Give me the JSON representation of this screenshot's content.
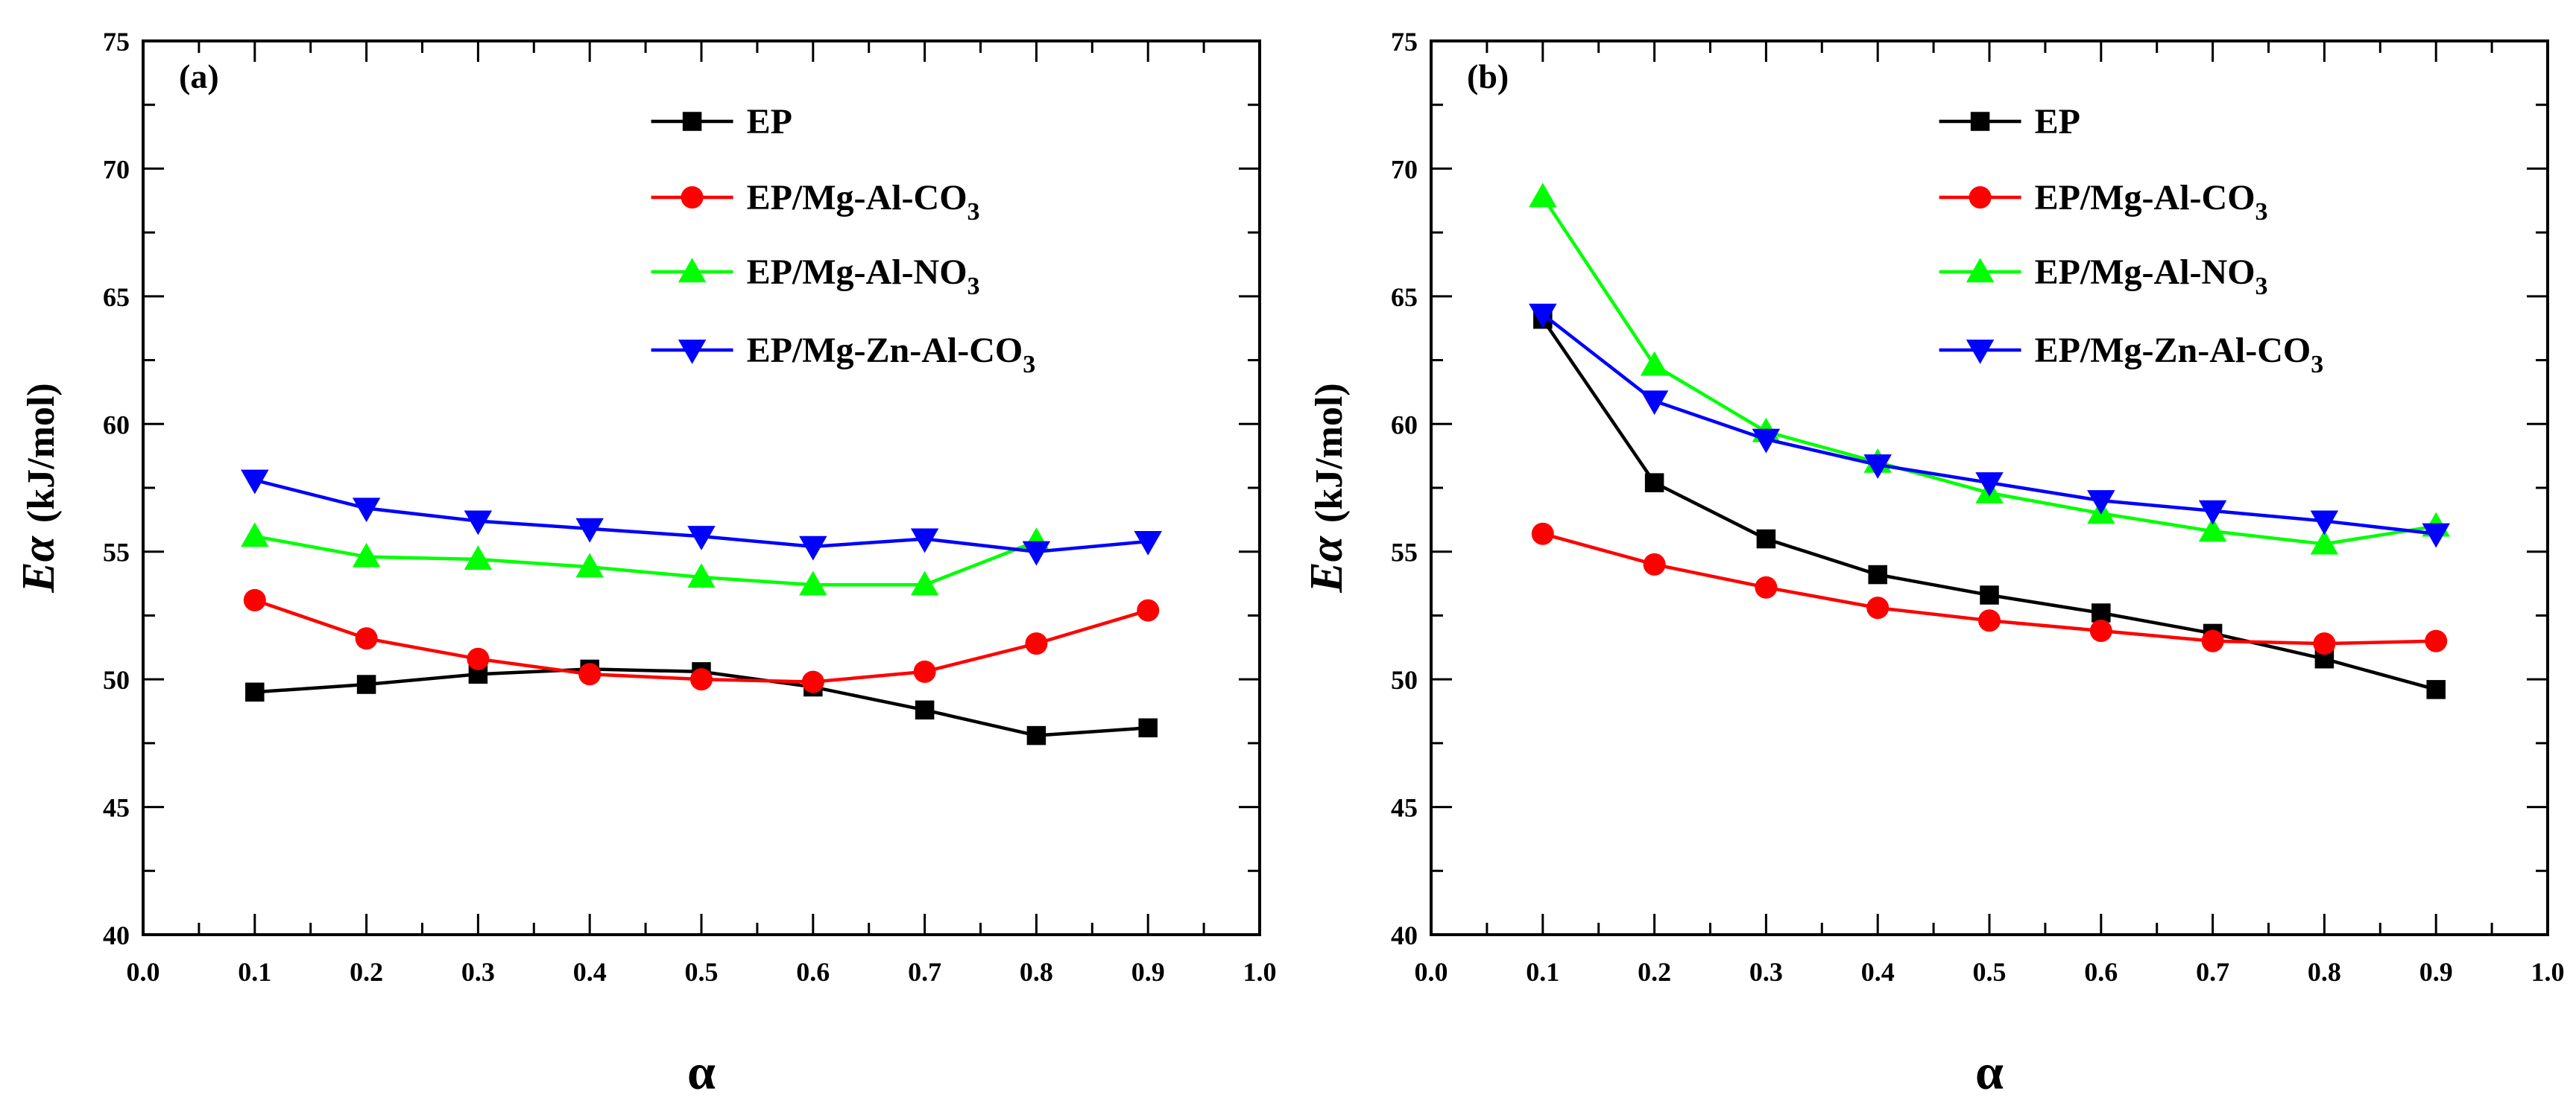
{
  "figure": {
    "series_colors": {
      "EP": "#000000",
      "EP/Mg-Al-CO3": "#ff0000",
      "EP/Mg-Al-NO3": "#00ff00",
      "EP/Mg-Zn-Al-CO3": "#0000ff"
    }
  },
  "chart_data": [
    {
      "type": "line",
      "panel_label": "(a)",
      "xlabel": "α",
      "ylabel_italic": "Eα",
      "ylabel_unit": "(kJ/mol)",
      "xlim": [
        0.0,
        1.0
      ],
      "ylim": [
        40,
        75
      ],
      "x_ticks": [
        "0.0",
        "0.1",
        "0.2",
        "0.3",
        "0.4",
        "0.5",
        "0.6",
        "0.7",
        "0.8",
        "0.9",
        "1.0"
      ],
      "y_ticks": [
        "40",
        "45",
        "50",
        "55",
        "60",
        "65",
        "70",
        "75"
      ],
      "legend_position": "top-right",
      "x": [
        0.1,
        0.2,
        0.3,
        0.4,
        0.5,
        0.6,
        0.7,
        0.8,
        0.9
      ],
      "series": [
        {
          "name": "EP",
          "label_main": "EP",
          "label_sub": "",
          "label_tail": "",
          "marker": "square",
          "color": "#000000",
          "values": [
            49.5,
            49.8,
            50.2,
            50.4,
            50.3,
            49.7,
            48.8,
            47.8,
            48.1
          ]
        },
        {
          "name": "EP/Mg-Al-CO3",
          "label_main": "EP/Mg-Al-CO",
          "label_sub": "3",
          "label_tail": "",
          "marker": "circle",
          "color": "#ff0000",
          "values": [
            53.1,
            51.6,
            50.8,
            50.2,
            50.0,
            49.9,
            50.3,
            51.4,
            52.7
          ]
        },
        {
          "name": "EP/Mg-Al-NO3",
          "label_main": "EP/Mg-Al-NO",
          "label_sub": "3",
          "label_tail": "",
          "marker": "triangle-up",
          "color": "#00ff00",
          "values": [
            55.6,
            54.8,
            54.7,
            54.4,
            54.0,
            53.7,
            53.7,
            55.4,
            null
          ]
        },
        {
          "name": "EP/Mg-Zn-Al-CO3",
          "label_main": "EP/Mg-Zn-Al-CO",
          "label_sub": "3",
          "label_tail": "",
          "marker": "triangle-down",
          "color": "#0000ff",
          "values": [
            57.8,
            56.7,
            56.2,
            55.9,
            55.6,
            55.2,
            55.5,
            55.0,
            55.4
          ]
        }
      ]
    },
    {
      "type": "line",
      "panel_label": "(b)",
      "xlabel": "α",
      "ylabel_italic": "Eα",
      "ylabel_unit": "(kJ/mol)",
      "xlim": [
        0.0,
        1.0
      ],
      "ylim": [
        40,
        75
      ],
      "x_ticks": [
        "0.0",
        "0.1",
        "0.2",
        "0.3",
        "0.4",
        "0.5",
        "0.6",
        "0.7",
        "0.8",
        "0.9",
        "1.0"
      ],
      "y_ticks": [
        "40",
        "45",
        "50",
        "55",
        "60",
        "65",
        "70",
        "75"
      ],
      "legend_position": "top-right",
      "x": [
        0.1,
        0.2,
        0.3,
        0.4,
        0.5,
        0.6,
        0.7,
        0.8,
        0.9
      ],
      "series": [
        {
          "name": "EP",
          "label_main": "EP",
          "label_sub": "",
          "label_tail": "",
          "marker": "square",
          "color": "#000000",
          "values": [
            64.1,
            57.7,
            55.5,
            54.1,
            53.3,
            52.6,
            51.8,
            50.8,
            49.6
          ]
        },
        {
          "name": "EP/Mg-Al-CO3",
          "label_main": "EP/Mg-Al-CO",
          "label_sub": "3",
          "label_tail": "",
          "marker": "circle",
          "color": "#ff0000",
          "values": [
            55.7,
            54.5,
            53.6,
            52.8,
            52.3,
            51.9,
            51.5,
            51.4,
            51.5
          ]
        },
        {
          "name": "EP/Mg-Al-NO3",
          "label_main": "EP/Mg-Al-NO",
          "label_sub": "3",
          "label_tail": "",
          "marker": "triangle-up",
          "color": "#00ff00",
          "values": [
            68.9,
            62.3,
            59.7,
            58.5,
            57.3,
            56.5,
            55.8,
            55.3,
            56.0
          ]
        },
        {
          "name": "EP/Mg-Zn-Al-CO3",
          "label_main": "EP/Mg-Zn-Al-CO",
          "label_sub": "3",
          "label_tail": "",
          "marker": "triangle-down",
          "color": "#0000ff",
          "values": [
            64.3,
            60.9,
            59.4,
            58.4,
            57.7,
            57.0,
            56.6,
            56.2,
            55.7
          ]
        }
      ]
    }
  ]
}
